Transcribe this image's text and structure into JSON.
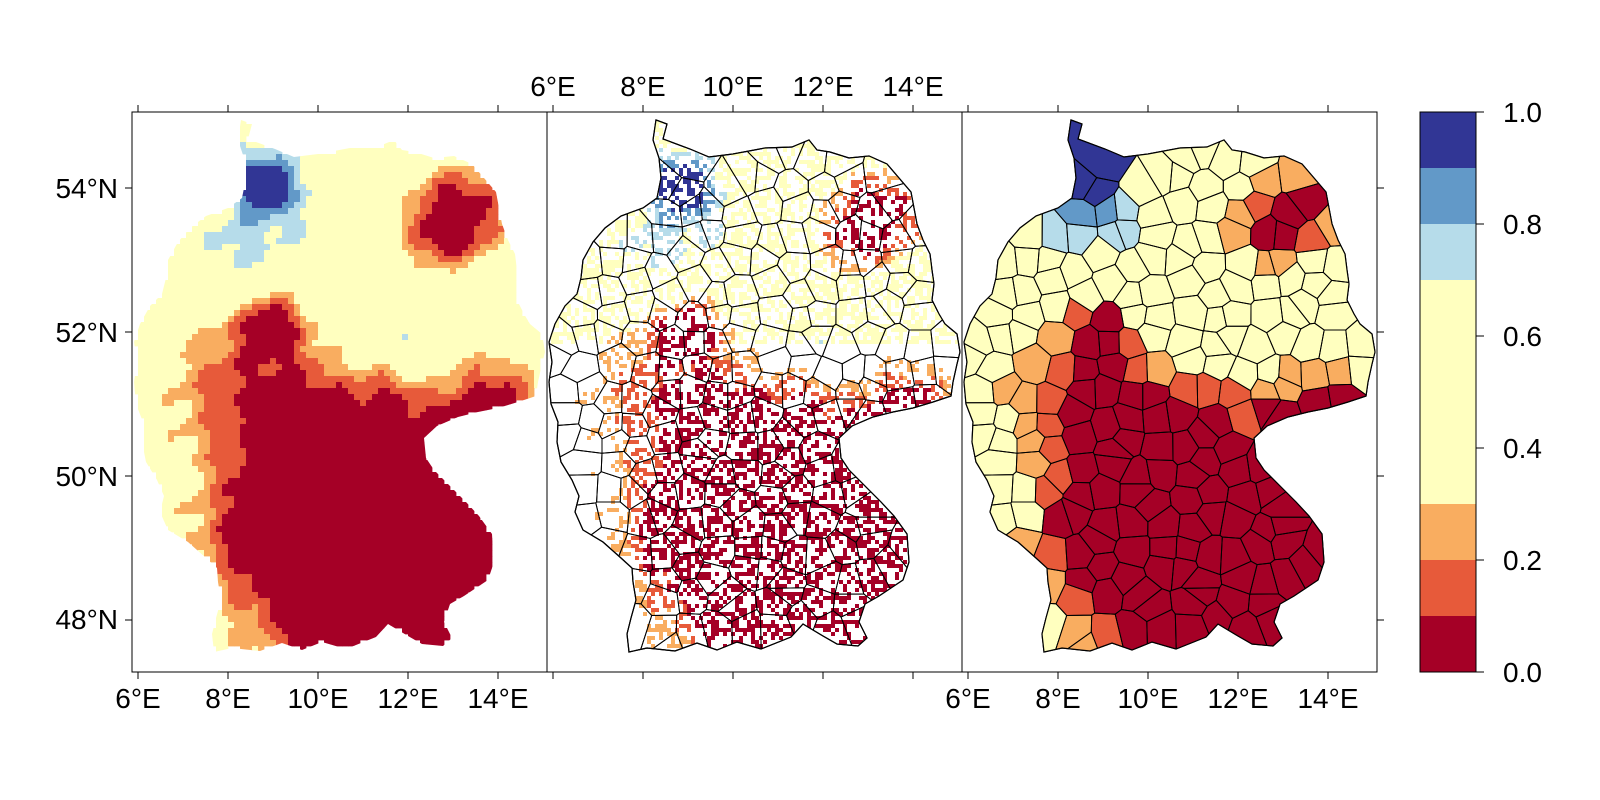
{
  "panels": [
    {
      "id": "gridded-field",
      "style": "raster"
    },
    {
      "id": "station-points-districts",
      "style": "points-with-district-borders"
    },
    {
      "id": "district-aggregate",
      "style": "filled-districts"
    }
  ],
  "axes": {
    "lon_labels": [
      "6°E",
      "8°E",
      "10°E",
      "12°E",
      "14°E"
    ],
    "lat_labels": [
      "48°N",
      "50°N",
      "52°N",
      "54°N"
    ],
    "lon_values": [
      6,
      8,
      10,
      12,
      14
    ],
    "lat_values": [
      48,
      50,
      52,
      54
    ],
    "lon_range": [
      5.85,
      15.1
    ],
    "lat_range": [
      47.3,
      55.1
    ]
  },
  "colorbar": {
    "tick_labels": [
      "0.0",
      "0.2",
      "0.4",
      "0.6",
      "0.8",
      "1.0"
    ],
    "tick_values": [
      0.0,
      0.2,
      0.4,
      0.6,
      0.8,
      1.0
    ],
    "classes": [
      {
        "from": 0.0,
        "to": 0.1,
        "color": "#a50026"
      },
      {
        "from": 0.1,
        "to": 0.2,
        "color": "#e75a3a"
      },
      {
        "from": 0.2,
        "to": 0.3,
        "color": "#f9ad60"
      },
      {
        "from": 0.3,
        "to": 0.7,
        "color": "#ffffbf"
      },
      {
        "from": 0.7,
        "to": 0.8,
        "color": "#b6dcea"
      },
      {
        "from": 0.8,
        "to": 0.9,
        "color": "#6299c8"
      },
      {
        "from": 0.9,
        "to": 1.0,
        "color": "#313695"
      }
    ]
  },
  "colors": {
    "class_0_0_0_1": "#a50026",
    "class_0_1_0_2": "#e75a3a",
    "class_0_2_0_3": "#f9ad60",
    "class_0_3_0_7": "#ffffbf",
    "class_0_7_0_8": "#b6dcea",
    "class_0_8_0_9": "#6299c8",
    "class_0_9_1_0": "#313695",
    "border": "#000000"
  }
}
